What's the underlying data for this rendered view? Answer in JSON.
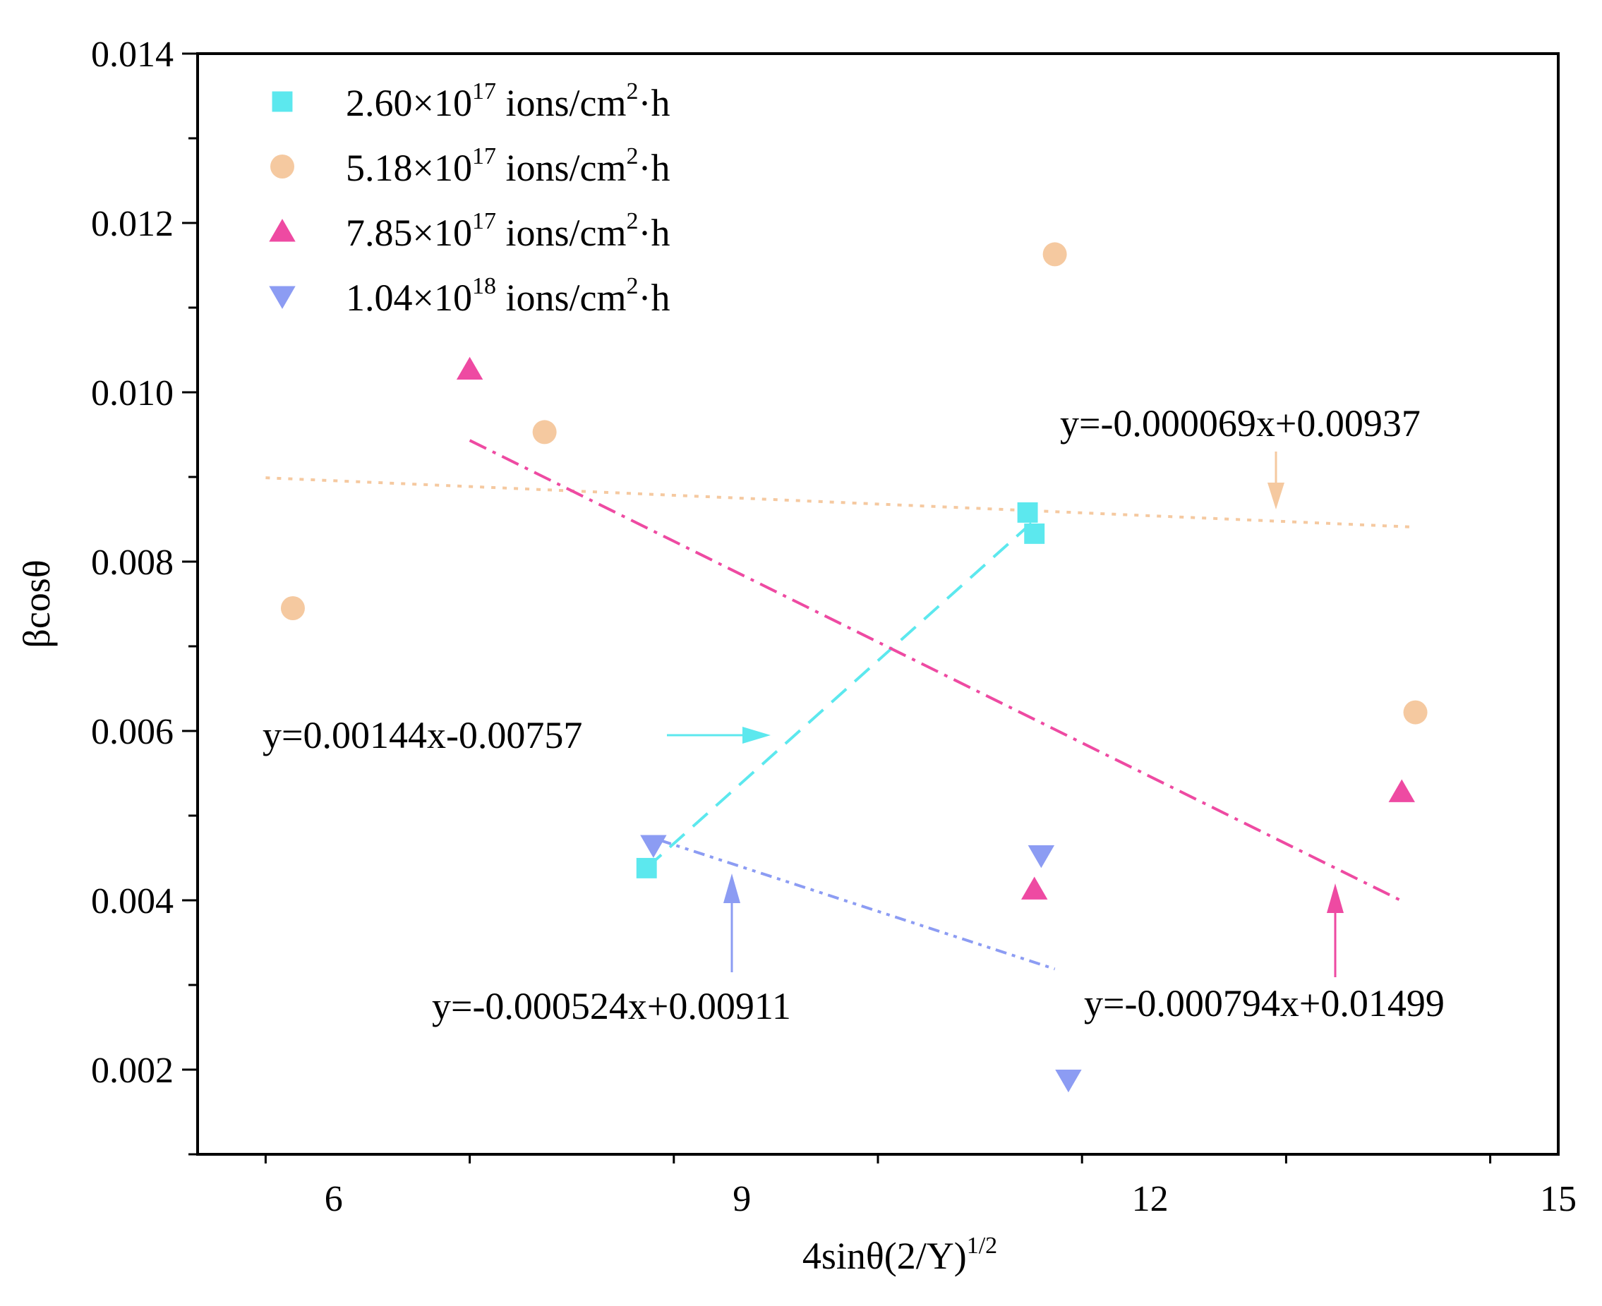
{
  "chart_data": {
    "type": "scatter",
    "title": "",
    "xlabel": {
      "base": "4sinθ(2/Y)",
      "sup": "1/2"
    },
    "ylabel": "βcosθ",
    "xlim": [
      5,
      15
    ],
    "ylim": [
      0.001,
      0.014
    ],
    "x_ticks": [
      6,
      9,
      12,
      15
    ],
    "x_tick_labels": [
      "6",
      "9",
      "12",
      "15"
    ],
    "y_ticks": [
      0.002,
      0.004,
      0.006,
      0.008,
      0.01,
      0.012,
      0.014
    ],
    "y_tick_labels": [
      "0.002",
      "0.004",
      "0.006",
      "0.008",
      "0.010",
      "0.012",
      "0.014"
    ],
    "legend_position": "top-left",
    "series": [
      {
        "name": "2.60×10^17 ions/cm^2·h",
        "label_parts": [
          "2.60×10",
          "17",
          " ions/cm",
          "2",
          "·h"
        ],
        "marker": "square",
        "color": "#5ce8ee",
        "points": [
          [
            8.3,
            0.00438
          ],
          [
            11.1,
            0.00858
          ],
          [
            11.15,
            0.00833
          ]
        ],
        "fit": {
          "equation": "y=0.00144x-0.00757",
          "slope": 0.00144,
          "intercept": -0.00757,
          "x_range": [
            8.3,
            11.15
          ],
          "dash": "28,16"
        }
      },
      {
        "name": "5.18×10^17 ions/cm^2·h",
        "label_parts": [
          "5.18×10",
          "17",
          " ions/cm",
          "2",
          "·h"
        ],
        "marker": "circle",
        "color": "#f5c9a0",
        "points": [
          [
            5.7,
            0.00745
          ],
          [
            7.55,
            0.00953
          ],
          [
            11.3,
            0.01163
          ],
          [
            13.95,
            0.00622
          ]
        ],
        "fit": {
          "equation": "y=-0.000069x+0.00937",
          "slope": -6.9e-05,
          "intercept": 0.00937,
          "x_range": [
            5.5,
            13.95
          ],
          "dash": "6,10"
        }
      },
      {
        "name": "7.85×10^17 ions/cm^2·h",
        "label_parts": [
          "7.85×10",
          "17",
          " ions/cm",
          "2",
          "·h"
        ],
        "marker": "triangle-up",
        "color": "#ee4aa2",
        "points": [
          [
            7.0,
            0.01027
          ],
          [
            11.15,
            0.00413
          ],
          [
            13.85,
            0.00528
          ]
        ],
        "fit": {
          "equation": "y=-0.000794x+0.01499",
          "slope": -0.000794,
          "intercept": 0.01499,
          "x_range": [
            7.0,
            13.85
          ],
          "dash": "26,10,5,10"
        }
      },
      {
        "name": "1.04×10^18 ions/cm^2·h",
        "label_parts": [
          "1.04×10",
          "18",
          " ions/cm",
          "2",
          "·h"
        ],
        "marker": "triangle-down",
        "color": "#8c9cf3",
        "points": [
          [
            8.35,
            0.00465
          ],
          [
            11.2,
            0.00453
          ],
          [
            11.4,
            0.00188
          ]
        ],
        "fit": {
          "equation": "y=-0.000524x+0.00911",
          "slope": -0.000524,
          "intercept": 0.00911,
          "x_range": [
            8.4,
            11.3
          ],
          "dash": "16,8,5,8,5,8"
        }
      }
    ]
  }
}
